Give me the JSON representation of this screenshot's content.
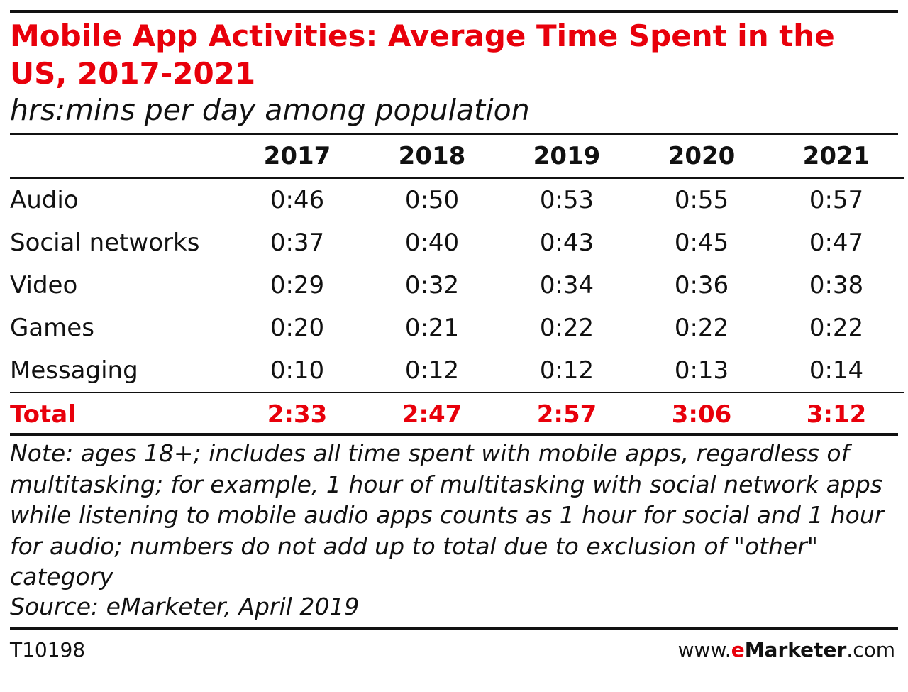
{
  "chart_data": {
    "type": "table",
    "title": "Mobile App Activities: Average Time Spent in the US, 2017-2021",
    "subtitle": "hrs:mins per day among population",
    "columns": [
      "2017",
      "2018",
      "2019",
      "2020",
      "2021"
    ],
    "rows": [
      {
        "label": "Audio",
        "values": [
          "0:46",
          "0:50",
          "0:53",
          "0:55",
          "0:57"
        ]
      },
      {
        "label": "Social networks",
        "values": [
          "0:37",
          "0:40",
          "0:43",
          "0:45",
          "0:47"
        ]
      },
      {
        "label": "Video",
        "values": [
          "0:29",
          "0:32",
          "0:34",
          "0:36",
          "0:38"
        ]
      },
      {
        "label": "Games",
        "values": [
          "0:20",
          "0:21",
          "0:22",
          "0:22",
          "0:22"
        ]
      },
      {
        "label": "Messaging",
        "values": [
          "0:10",
          "0:12",
          "0:12",
          "0:13",
          "0:14"
        ]
      }
    ],
    "total": {
      "label": "Total",
      "values": [
        "2:33",
        "2:47",
        "2:57",
        "3:06",
        "3:12"
      ]
    },
    "note": "Note: ages 18+; includes all time spent with mobile apps, regardless of multitasking; for example, 1 hour of multitasking with social network apps while listening to mobile audio apps counts as 1 hour for social and 1 hour for audio; numbers do not add up to total due to exclusion of \"other\" category",
    "source": "Source: eMarketer, April 2019",
    "chart_id": "T10198",
    "brand": {
      "prefix": "www.",
      "e": "e",
      "name": "Marketer",
      "suffix": ".com"
    },
    "colors": {
      "accent": "#e8000b",
      "text": "#111111"
    }
  }
}
